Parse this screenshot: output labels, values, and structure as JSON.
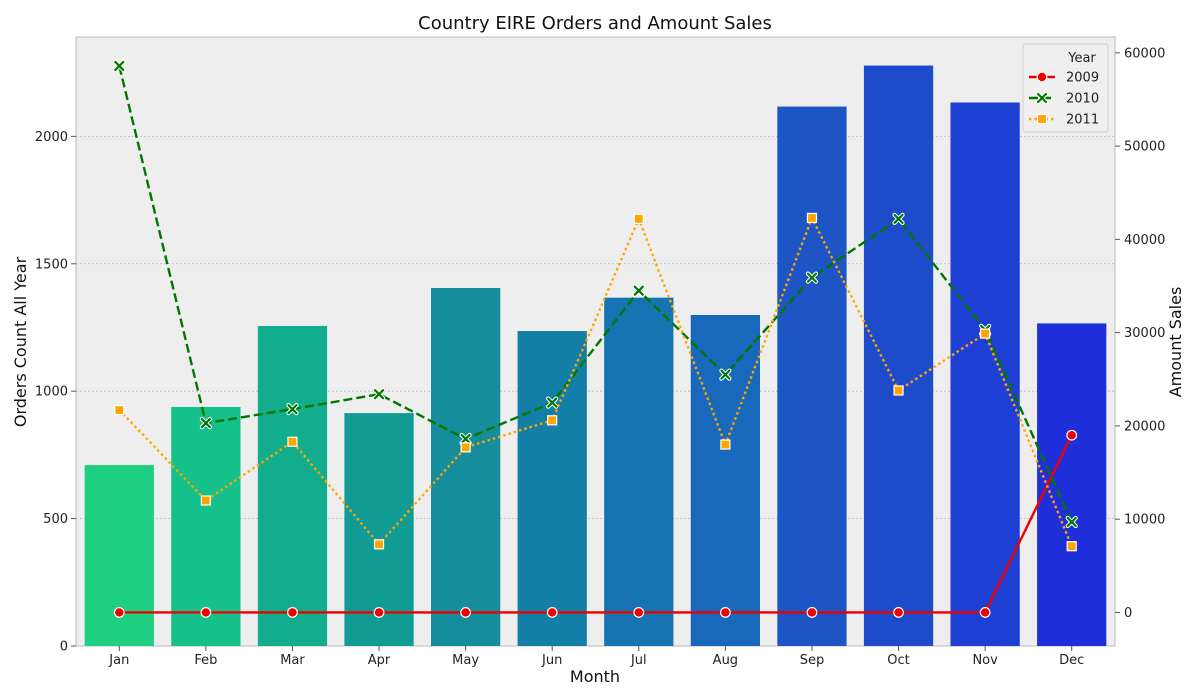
{
  "chart_data": {
    "type": "bar",
    "title": "Country EIRE Orders and Amount Sales",
    "xlabel": "Month",
    "ylabel": "Orders Count All Year",
    "y2label": "Amount Sales",
    "categories": [
      "Jan",
      "Feb",
      "Mar",
      "Apr",
      "May",
      "Jun",
      "Jul",
      "Aug",
      "Sep",
      "Oct",
      "Nov",
      "Dec"
    ],
    "bars": {
      "values": [
        710,
        938,
        1256,
        914,
        1405,
        1236,
        1367,
        1299,
        2117,
        2278,
        2133,
        1266
      ],
      "colors": [
        "#1ecf82",
        "#16c08a",
        "#12ad8d",
        "#109c95",
        "#168d9c",
        "#147fa6",
        "#1774b3",
        "#1868bc",
        "#1d56c4",
        "#1e4bc9",
        "#1e3fd3",
        "#1f30da"
      ]
    },
    "ylim": [
      0,
      2390
    ],
    "yticks": [
      0,
      500,
      1000,
      1500,
      2000
    ],
    "y2lim": [
      -3600,
      61700
    ],
    "y2ticks": [
      0,
      10000,
      20000,
      30000,
      40000,
      50000,
      60000
    ],
    "legend": {
      "title": "Year",
      "placement": "top-right"
    },
    "series": [
      {
        "name": "2009",
        "color": "#ee0000",
        "style": "solid",
        "marker": "circle",
        "values": [
          0,
          0,
          0,
          0,
          0,
          0,
          0,
          0,
          0,
          0,
          0,
          19000
        ]
      },
      {
        "name": "2010",
        "color": "#007700",
        "style": "dashed",
        "marker": "x",
        "values": [
          58600,
          20300,
          21800,
          23400,
          18600,
          22500,
          34500,
          25500,
          35900,
          42200,
          30300,
          9700
        ]
      },
      {
        "name": "2011",
        "color": "#ffa500",
        "style": "dotted",
        "marker": "square",
        "values": [
          21700,
          12000,
          18300,
          7300,
          17700,
          20600,
          42200,
          18000,
          42300,
          23800,
          29900,
          7100
        ]
      }
    ],
    "grid": true
  }
}
